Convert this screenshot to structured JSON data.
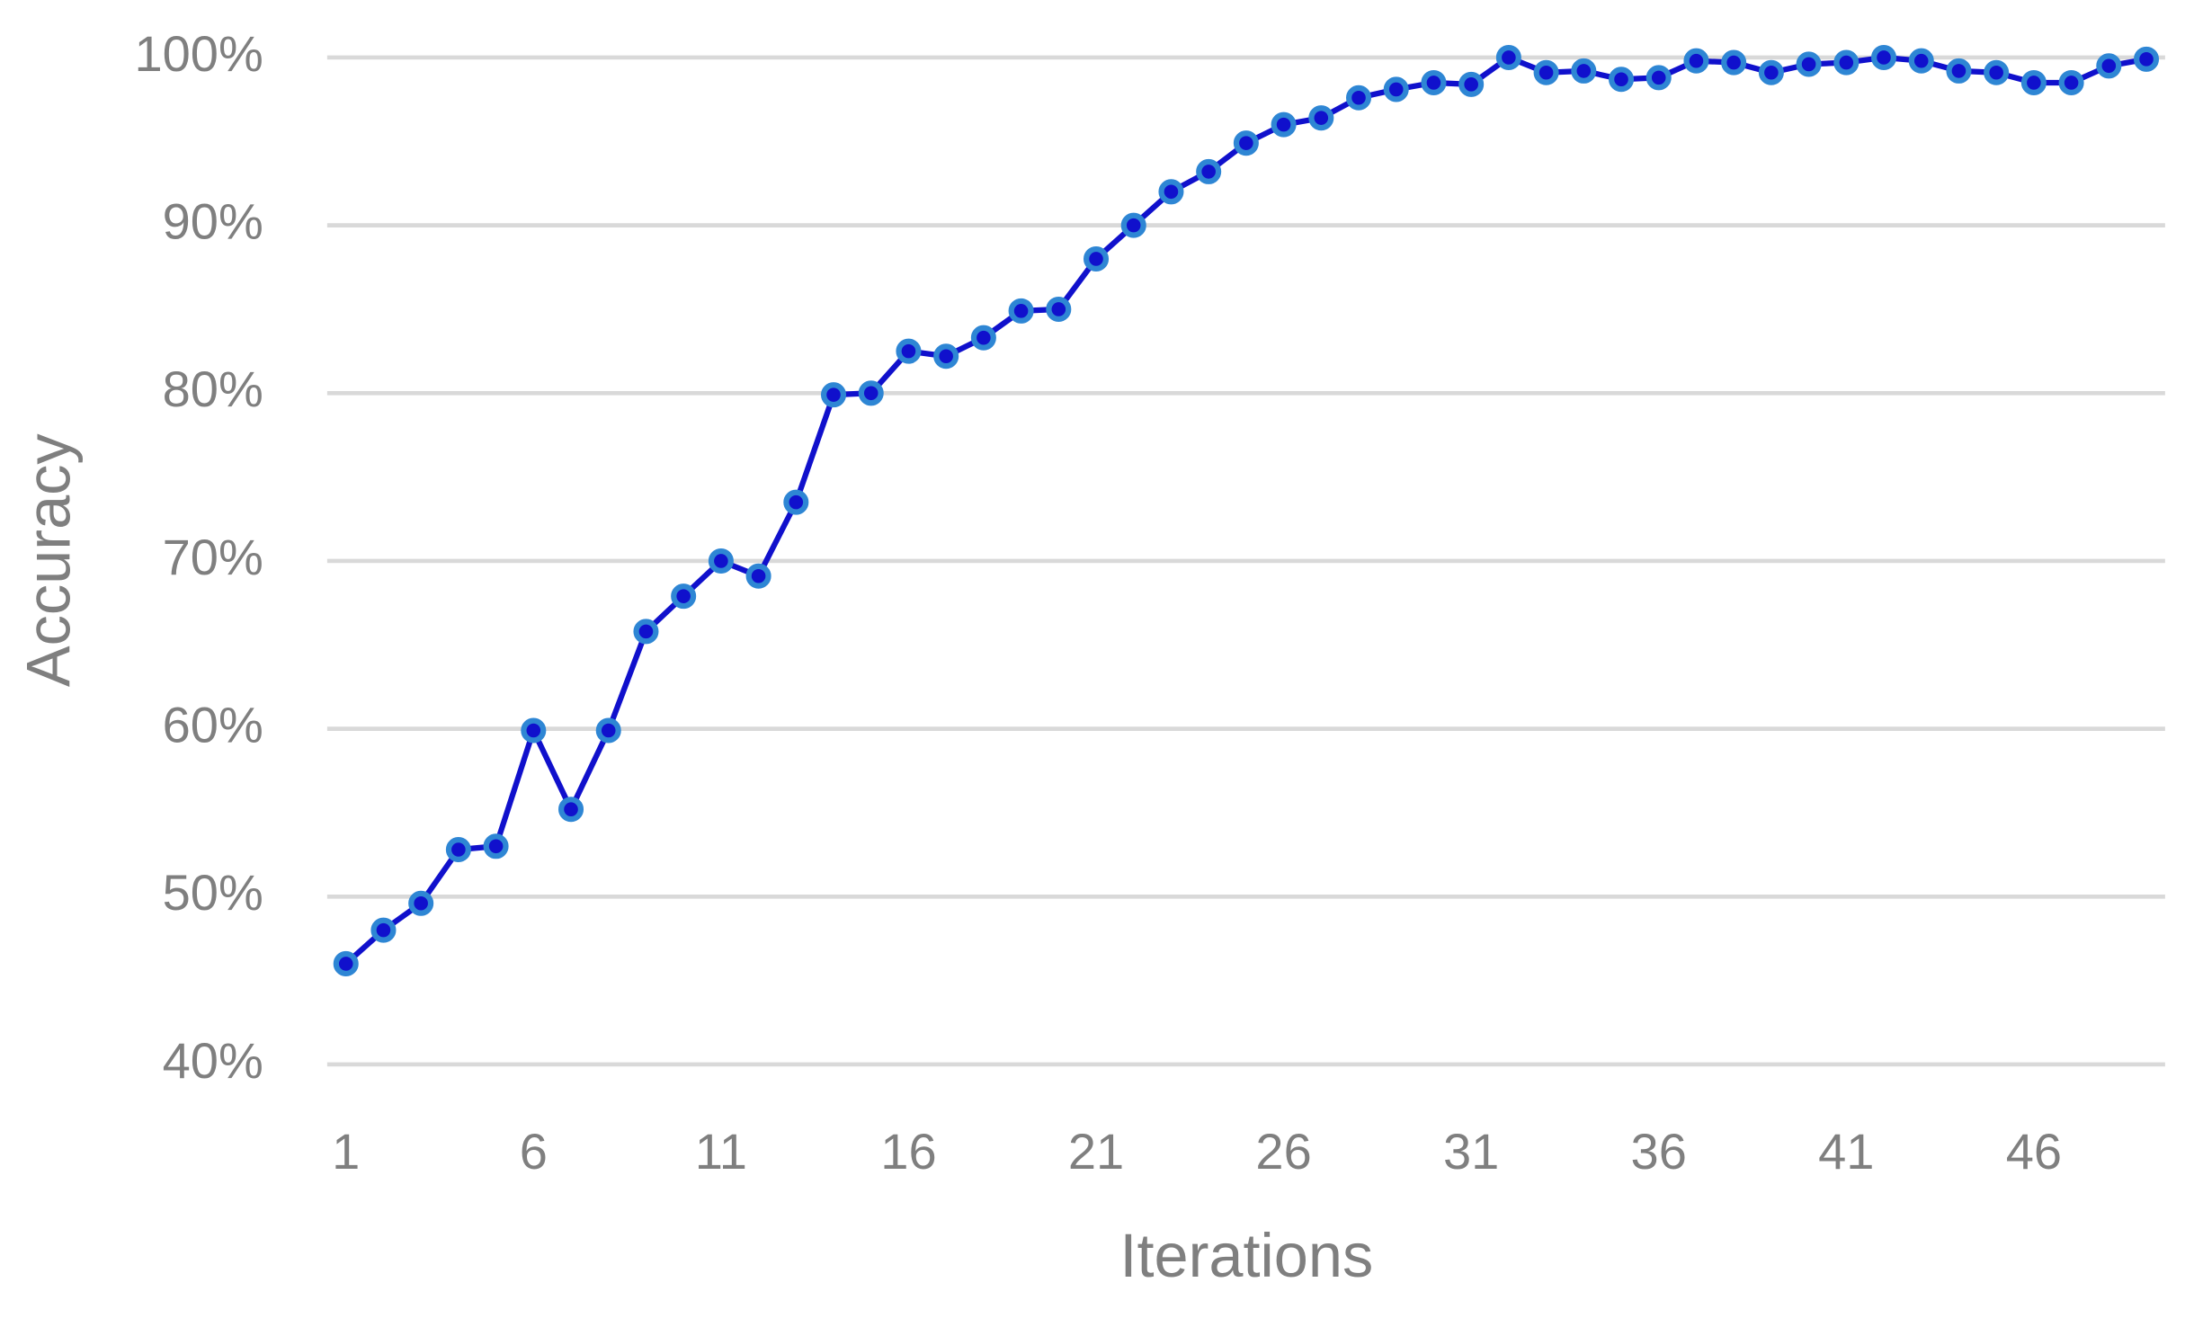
{
  "chart_data": {
    "type": "line",
    "x_label": "Iterations",
    "y_label": "Accuracy",
    "x": [
      1,
      2,
      3,
      4,
      5,
      6,
      7,
      8,
      9,
      10,
      11,
      12,
      13,
      14,
      15,
      16,
      17,
      18,
      19,
      20,
      21,
      22,
      23,
      24,
      25,
      26,
      27,
      28,
      29,
      30,
      31,
      32,
      33,
      34,
      35,
      36,
      37,
      38,
      39,
      40,
      41,
      42,
      43,
      44,
      45,
      46,
      47,
      48,
      49
    ],
    "values": [
      46,
      48,
      49.6,
      52.8,
      53,
      59.9,
      55.2,
      59.9,
      65.8,
      67.9,
      70,
      69.1,
      73.5,
      79.9,
      80,
      82.5,
      82.2,
      83.3,
      84.9,
      85,
      88,
      90,
      92,
      93.2,
      94.9,
      96,
      96.4,
      97.6,
      98.1,
      98.5,
      98.4,
      100,
      99.1,
      99.2,
      98.7,
      98.8,
      99.8,
      99.7,
      99.1,
      99.6,
      99.7,
      100,
      99.8,
      99.2,
      99.1,
      98.5,
      98.5,
      99.5,
      99.9
    ],
    "color": "#1010cc",
    "marker_edge_color": "#2e86d4",
    "xlim": [
      0.5,
      49.5
    ],
    "xticks": [
      1,
      6,
      11,
      16,
      21,
      26,
      31,
      36,
      41,
      46
    ],
    "ylim": [
      40,
      100
    ],
    "yticks": [
      {
        "value": 40,
        "label": "40%"
      },
      {
        "value": 50,
        "label": "50%"
      },
      {
        "value": 60,
        "label": "60%"
      },
      {
        "value": 70,
        "label": "70%"
      },
      {
        "value": 80,
        "label": "80%"
      },
      {
        "value": 90,
        "label": "90%"
      },
      {
        "value": 100,
        "label": "100%"
      }
    ],
    "grid": true
  }
}
